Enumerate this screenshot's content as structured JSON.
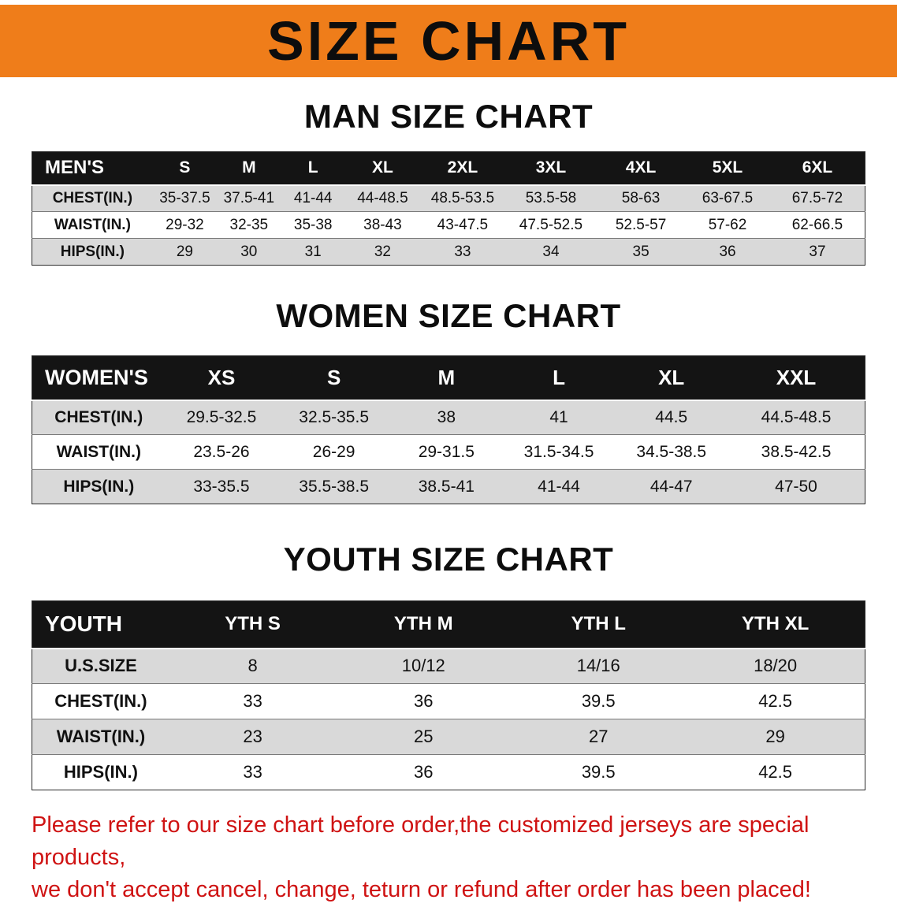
{
  "banner": {
    "title": "SIZE CHART"
  },
  "colors": {
    "banner_bg": "#ef7d1a",
    "header_bg": "#141414",
    "row_alt_bg": "#d9d9d9",
    "disclaimer_red": "#cf1313"
  },
  "men": {
    "heading": "MAN SIZE CHART",
    "columns": [
      "MEN'S",
      "S",
      "M",
      "L",
      "XL",
      "2XL",
      "3XL",
      "4XL",
      "5XL",
      "6XL"
    ],
    "rows": [
      [
        "CHEST(IN.)",
        "35-37.5",
        "37.5-41",
        "41-44",
        "44-48.5",
        "48.5-53.5",
        "53.5-58",
        "58-63",
        "63-67.5",
        "67.5-72"
      ],
      [
        "WAIST(IN.)",
        "29-32",
        "32-35",
        "35-38",
        "38-43",
        "43-47.5",
        "47.5-52.5",
        "52.5-57",
        "57-62",
        "62-66.5"
      ],
      [
        "HIPS(IN.)",
        "29",
        "30",
        "31",
        "32",
        "33",
        "34",
        "35",
        "36",
        "37"
      ]
    ]
  },
  "women": {
    "heading": "WOMEN SIZE CHART",
    "columns": [
      "WOMEN'S",
      "XS",
      "S",
      "M",
      "L",
      "XL",
      "XXL"
    ],
    "rows": [
      [
        "CHEST(IN.)",
        "29.5-32.5",
        "32.5-35.5",
        "38",
        "41",
        "44.5",
        "44.5-48.5"
      ],
      [
        "WAIST(IN.)",
        "23.5-26",
        "26-29",
        "29-31.5",
        "31.5-34.5",
        "34.5-38.5",
        "38.5-42.5"
      ],
      [
        "HIPS(IN.)",
        "33-35.5",
        "35.5-38.5",
        "38.5-41",
        "41-44",
        "44-47",
        "47-50"
      ]
    ]
  },
  "youth": {
    "heading": "YOUTH SIZE CHART",
    "columns": [
      "YOUTH",
      "YTH S",
      "YTH M",
      "YTH L",
      "YTH XL"
    ],
    "rows": [
      [
        "U.S.SIZE",
        "8",
        "10/12",
        "14/16",
        "18/20"
      ],
      [
        "CHEST(IN.)",
        "33",
        "36",
        "39.5",
        "42.5"
      ],
      [
        "WAIST(IN.)",
        "23",
        "25",
        "27",
        "29"
      ],
      [
        "HIPS(IN.)",
        "33",
        "36",
        "39.5",
        "42.5"
      ]
    ]
  },
  "disclaimer": {
    "line1": "Please refer to our size chart before order,the customized jerseys are special products,",
    "line2": "we don't accept cancel, change, teturn or refund after order has been placed!"
  }
}
